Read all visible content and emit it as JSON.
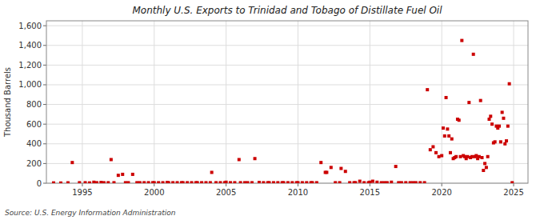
{
  "chart_data": {
    "type": "scatter",
    "title": "Monthly U.S. Exports to Trinidad and Tobago of Distillate Fuel Oil",
    "ylabel": "Thousand Barrels",
    "annotations": [
      "Source: U.S. Energy Information Administration"
    ],
    "color": "#cc0000",
    "marker": "square",
    "grid": true,
    "xlim": [
      1992.5,
      2026.0
    ],
    "ylim": [
      0,
      1650
    ],
    "xticks": [
      1995,
      2000,
      2005,
      2010,
      2015,
      2020,
      2025
    ],
    "yticks": [
      0,
      200,
      400,
      600,
      800,
      {
        "value": 1000,
        "label": "1,000"
      },
      {
        "value": 1200,
        "label": "1,200"
      },
      {
        "value": 1400,
        "label": "1,400"
      },
      {
        "value": 1600,
        "label": "1,600"
      }
    ],
    "x": [
      1993.0,
      1993.5,
      1994.0,
      1994.3,
      1994.8,
      1995.2,
      1995.5,
      1995.8,
      1996.0,
      1996.3,
      1996.5,
      1996.8,
      1997.0,
      1997.2,
      1997.5,
      1997.8,
      1998.0,
      1998.2,
      1998.5,
      1998.8,
      1999.0,
      1999.3,
      1999.6,
      1999.9,
      2000.0,
      2000.3,
      2000.6,
      2000.9,
      2001.0,
      2001.3,
      2001.6,
      2001.9,
      2002.0,
      2002.3,
      2002.6,
      2002.9,
      2003.0,
      2003.3,
      2003.6,
      2003.9,
      2004.0,
      2004.3,
      2004.6,
      2004.9,
      2005.0,
      2005.3,
      2005.6,
      2005.9,
      2006.0,
      2006.3,
      2006.5,
      2006.8,
      2007.0,
      2007.3,
      2007.6,
      2007.9,
      2008.0,
      2008.3,
      2008.6,
      2008.9,
      2009.0,
      2009.3,
      2009.6,
      2009.9,
      2010.0,
      2010.3,
      2010.6,
      2010.9,
      2011.0,
      2011.3,
      2011.6,
      2011.9,
      2012.0,
      2012.3,
      2012.6,
      2012.9,
      2013.0,
      2013.3,
      2013.6,
      2013.9,
      2014.0,
      2014.3,
      2014.6,
      2014.9,
      2015.0,
      2015.2,
      2015.5,
      2015.8,
      2016.0,
      2016.2,
      2016.5,
      2016.8,
      2017.0,
      2017.2,
      2017.5,
      2017.8,
      2018.0,
      2018.2,
      2018.5,
      2018.8,
      2019.0,
      2019.2,
      2019.4,
      2019.6,
      2019.8,
      2020.0,
      2020.1,
      2020.2,
      2020.3,
      2020.4,
      2020.5,
      2020.6,
      2020.7,
      2020.8,
      2020.9,
      2021.0,
      2021.1,
      2021.2,
      2021.3,
      2021.4,
      2021.5,
      2021.6,
      2021.7,
      2021.8,
      2021.9,
      2022.0,
      2022.1,
      2022.2,
      2022.3,
      2022.4,
      2022.5,
      2022.6,
      2022.7,
      2022.8,
      2022.9,
      2023.0,
      2023.1,
      2023.2,
      2023.3,
      2023.4,
      2023.5,
      2023.6,
      2023.7,
      2023.8,
      2023.9,
      2024.0,
      2024.1,
      2024.2,
      2024.3,
      2024.4,
      2024.5,
      2024.6,
      2024.7,
      2024.9
    ],
    "values": [
      3,
      2,
      4,
      210,
      5,
      5,
      3,
      10,
      5,
      8,
      5,
      5,
      240,
      5,
      80,
      90,
      5,
      5,
      90,
      5,
      5,
      5,
      5,
      5,
      5,
      5,
      5,
      8,
      5,
      5,
      5,
      5,
      5,
      5,
      5,
      5,
      5,
      5,
      5,
      5,
      110,
      5,
      5,
      5,
      10,
      5,
      5,
      240,
      5,
      5,
      5,
      5,
      250,
      8,
      5,
      5,
      5,
      5,
      5,
      5,
      5,
      5,
      5,
      5,
      5,
      5,
      5,
      5,
      5,
      5,
      210,
      110,
      110,
      160,
      5,
      5,
      150,
      120,
      5,
      5,
      5,
      20,
      5,
      5,
      10,
      20,
      10,
      5,
      5,
      5,
      10,
      170,
      5,
      5,
      5,
      5,
      5,
      5,
      5,
      5,
      950,
      340,
      370,
      310,
      270,
      280,
      560,
      480,
      870,
      550,
      480,
      310,
      450,
      250,
      260,
      270,
      650,
      640,
      270,
      1450,
      280,
      270,
      250,
      270,
      820,
      260,
      270,
      1310,
      270,
      280,
      250,
      270,
      840,
      260,
      130,
      200,
      160,
      270,
      650,
      680,
      600,
      410,
      420,
      580,
      560,
      580,
      420,
      720,
      660,
      400,
      430,
      580,
      1010,
      5
    ]
  }
}
